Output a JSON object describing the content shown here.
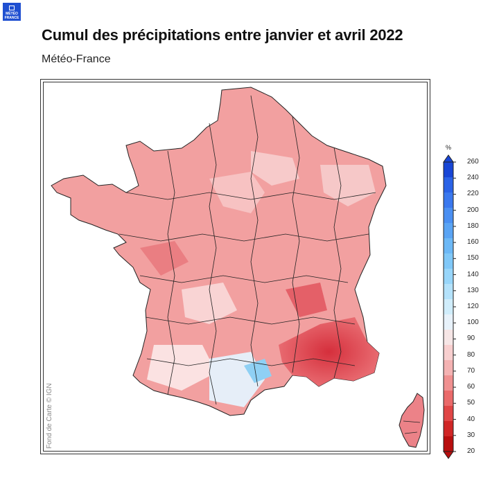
{
  "logo": {
    "text": "MÉTÉO FRANCE",
    "color": "#1f4fd1"
  },
  "title": "Cumul des précipitations entre janvier et avril 2022",
  "subtitle": "Météo-France",
  "credit": "Fond de Carte © IGN",
  "legend": {
    "unit": "%",
    "ticks": [
      "260",
      "240",
      "220",
      "200",
      "180",
      "160",
      "150",
      "140",
      "130",
      "120",
      "100",
      "90",
      "80",
      "70",
      "60",
      "50",
      "40",
      "30",
      "20"
    ],
    "colors": [
      "#1846d6",
      "#2a62e6",
      "#3a78ee",
      "#4a8ff2",
      "#5aa4f4",
      "#6cb8f6",
      "#80c8f8",
      "#98d6fa",
      "#b4e2fb",
      "#d0edfb",
      "#e8f2fa",
      "#f6e6e6",
      "#f8cfcf",
      "#f4b2b2",
      "#f09090",
      "#ea6a6a",
      "#e04646",
      "#d02626",
      "#b80e0e"
    ]
  },
  "map": {
    "description_colors": {
      "base": "#f29a9a",
      "light": "#f7c6c6",
      "pale": "#fbe3e3",
      "dark": "#e0505a",
      "blue": "#8fd0f4"
    }
  }
}
